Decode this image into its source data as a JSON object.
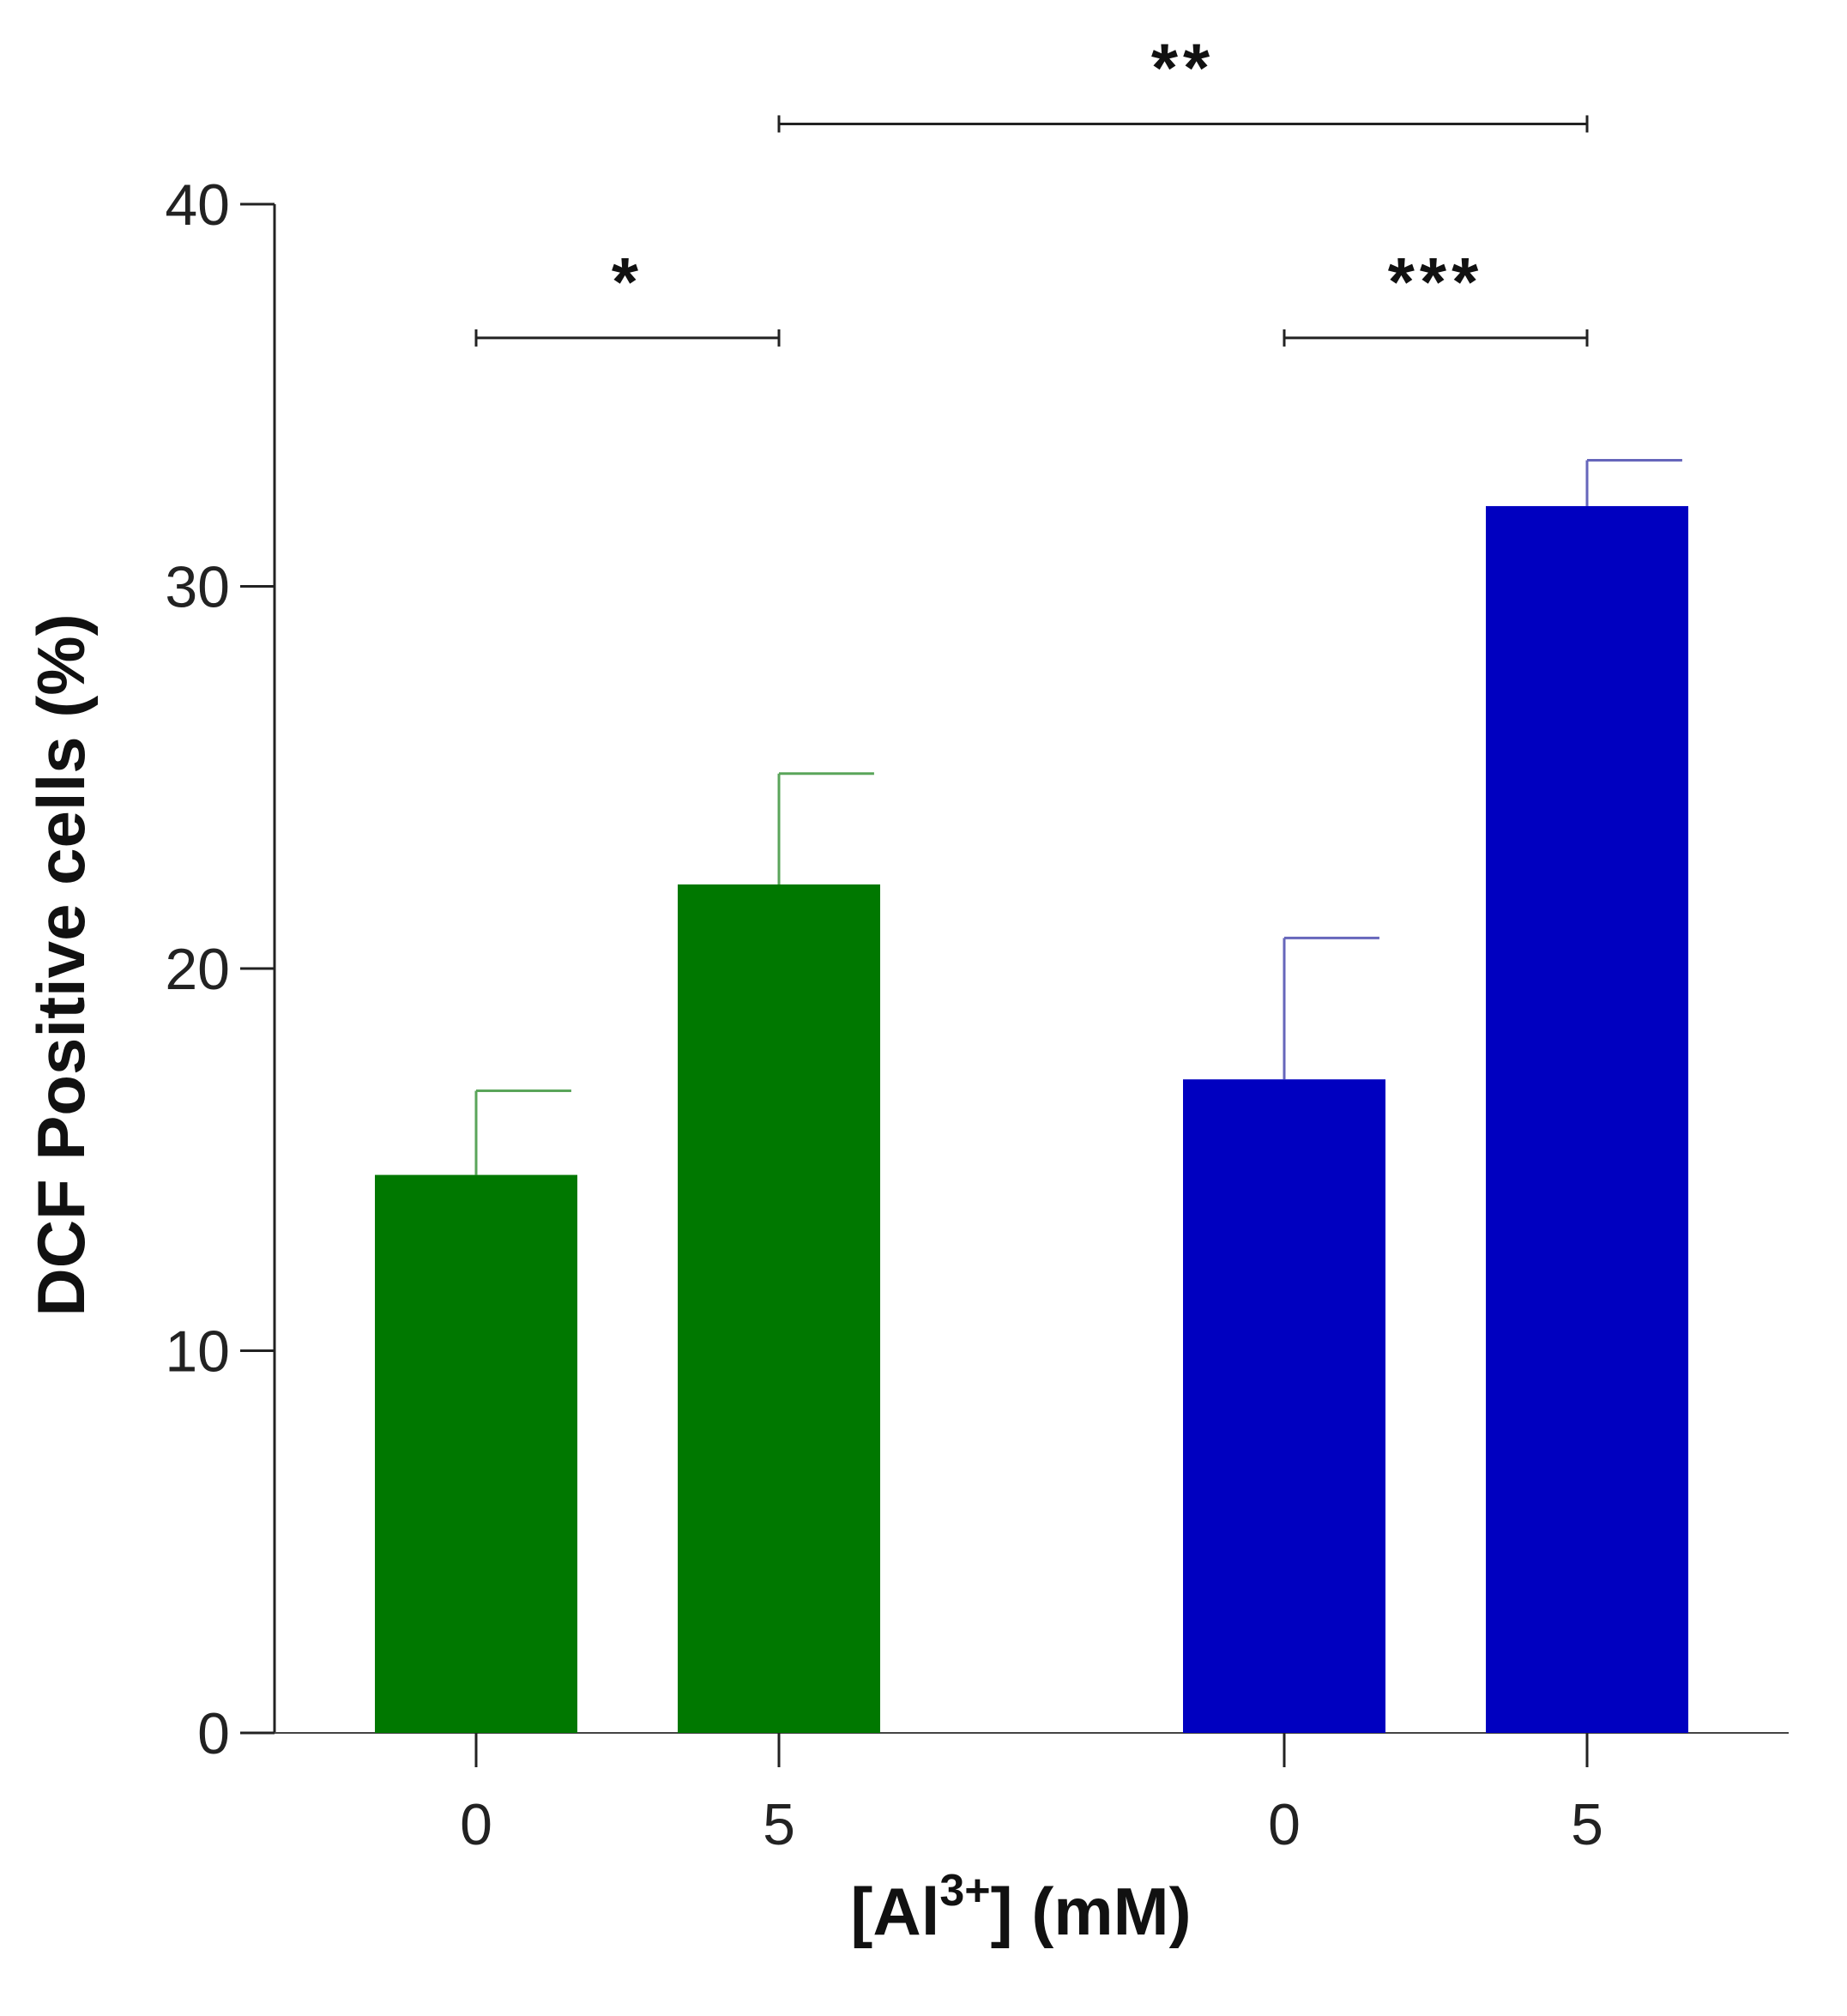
{
  "chart_data": {
    "type": "bar",
    "title": "",
    "xlabel_prefix": "[Al",
    "xlabel_sup": "3+",
    "xlabel_suffix": "] (mM)",
    "ylabel": "DCF Positive cells (%)",
    "ylim": [
      0,
      40
    ],
    "yticks": [
      "0",
      "10",
      "20",
      "30",
      "40"
    ],
    "ytick_values": [
      0,
      10,
      20,
      30,
      40
    ],
    "grid": false,
    "categories": [
      "0",
      "5",
      "0",
      "5"
    ],
    "values": [
      14.6,
      22.2,
      17.1,
      32.1
    ],
    "errors": [
      2.2,
      2.9,
      3.7,
      1.2
    ],
    "colors": [
      "#007800",
      "#007800",
      "#0000c0",
      "#0000c0"
    ],
    "error_colors": [
      "#5aa55a",
      "#5aa55a",
      "#6666bb",
      "#6666bb"
    ],
    "significance": [
      {
        "from": 0,
        "to": 1,
        "label": "*",
        "level": 36.5
      },
      {
        "from": 2,
        "to": 3,
        "label": "***",
        "level": 36.5
      },
      {
        "from": 1,
        "to": 3,
        "label": "**",
        "level": 42.1
      }
    ]
  }
}
